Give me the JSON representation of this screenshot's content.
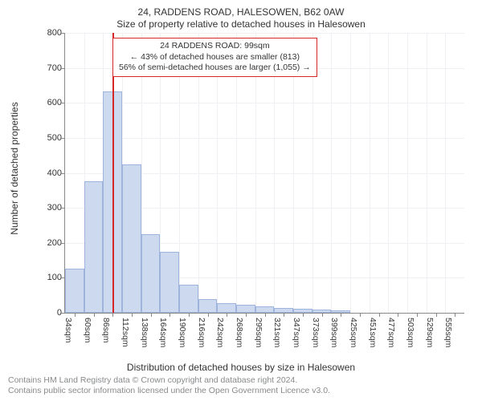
{
  "titles": {
    "main": "24, RADDENS ROAD, HALESOWEN, B62 0AW",
    "sub": "Size of property relative to detached houses in Halesowen"
  },
  "axes": {
    "y_label": "Number of detached properties",
    "x_label": "Distribution of detached houses by size in Halesowen",
    "ylim_max": 800,
    "y_ticks": [
      0,
      100,
      200,
      300,
      400,
      500,
      600,
      700,
      800
    ],
    "x_tick_labels": [
      "34sqm",
      "60sqm",
      "86sqm",
      "112sqm",
      "138sqm",
      "164sqm",
      "190sqm",
      "216sqm",
      "242sqm",
      "268sqm",
      "295sqm",
      "321sqm",
      "347sqm",
      "373sqm",
      "399sqm",
      "425sqm",
      "451sqm",
      "477sqm",
      "503sqm",
      "529sqm",
      "555sqm"
    ]
  },
  "chart": {
    "type": "histogram",
    "n_bins": 21,
    "values": [
      125,
      375,
      632,
      425,
      225,
      175,
      80,
      40,
      28,
      22,
      18,
      14,
      12,
      10,
      8,
      0,
      0,
      0,
      0,
      0,
      0
    ],
    "bar_fill": "#cdd9ef",
    "bar_stroke": "#9fb4dc",
    "background": "#ffffff",
    "grid_color": "#eef0f4",
    "marker_color": "#d62728",
    "marker_bin_index": 2,
    "marker_fraction_in_bin": 0.55
  },
  "info_box": {
    "line1": "24 RADDENS ROAD: 99sqm",
    "line2": "← 43% of detached houses are smaller (813)",
    "line3": "56% of semi-detached houses are larger (1,055) →"
  },
  "footer": {
    "line1": "Contains HM Land Registry data © Crown copyright and database right 2024.",
    "line2": "Contains public sector information licensed under the Open Government Licence v3.0."
  },
  "style": {
    "title_fontsize": 12,
    "axis_label_fontsize": 12,
    "tick_fontsize": 11,
    "footer_color": "#888a8c"
  }
}
